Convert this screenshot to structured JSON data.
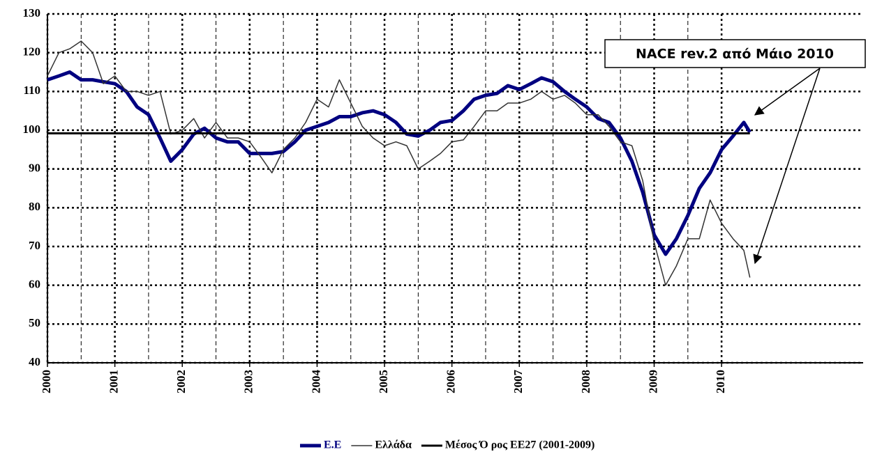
{
  "chart_data": {
    "type": "line",
    "annotation": "NACE rev.2 από Μάιο 2010",
    "x": [
      2000.0,
      2000.17,
      2000.33,
      2000.5,
      2000.67,
      2000.83,
      2001.0,
      2001.17,
      2001.33,
      2001.5,
      2001.67,
      2001.83,
      2002.0,
      2002.17,
      2002.33,
      2002.5,
      2002.67,
      2002.83,
      2003.0,
      2003.17,
      2003.33,
      2003.5,
      2003.67,
      2003.83,
      2004.0,
      2004.17,
      2004.33,
      2004.5,
      2004.67,
      2004.83,
      2005.0,
      2005.17,
      2005.33,
      2005.5,
      2005.67,
      2005.83,
      2006.0,
      2006.17,
      2006.33,
      2006.5,
      2006.67,
      2006.83,
      2007.0,
      2007.17,
      2007.33,
      2007.5,
      2007.67,
      2007.83,
      2008.0,
      2008.17,
      2008.33,
      2008.5,
      2008.67,
      2008.83,
      2009.0,
      2009.17,
      2009.33,
      2009.5,
      2009.67,
      2009.83,
      2010.0,
      2010.17,
      2010.33,
      2010.42
    ],
    "series": [
      {
        "name": "Ε.Ε",
        "color": "#000080",
        "width": 5,
        "values": [
          113,
          114,
          115,
          113,
          113,
          112.5,
          112,
          110,
          106,
          104,
          98,
          92,
          95,
          99,
          100.5,
          98,
          97,
          97,
          94,
          94,
          94,
          94.5,
          97,
          100,
          101,
          102,
          103.5,
          103.5,
          104.5,
          105,
          104,
          102,
          99,
          98.5,
          100,
          102,
          102.5,
          105,
          108,
          109,
          109.5,
          111.5,
          110.5,
          112,
          113.5,
          112.5,
          110,
          108,
          106,
          103,
          102,
          98,
          92,
          84,
          73,
          68,
          72,
          78,
          85,
          89,
          95,
          98.5,
          102,
          99.5
        ]
      },
      {
        "name": "Ελλάδα",
        "color": "#333333",
        "width": 1.5,
        "values": [
          114,
          120,
          121,
          123,
          120,
          112,
          114,
          110,
          110,
          109,
          110,
          99,
          100,
          103,
          98,
          102,
          98,
          98,
          97,
          93,
          89,
          95,
          98,
          102,
          108,
          106,
          113,
          107,
          101,
          98,
          96,
          97,
          96,
          90,
          92,
          94,
          97,
          97.5,
          101,
          105,
          105,
          107,
          107,
          108,
          110,
          108,
          109,
          107,
          104,
          104,
          101,
          97,
          96,
          87,
          71,
          60,
          65,
          72,
          72,
          82,
          76,
          72,
          69,
          62
        ]
      },
      {
        "name": "Μέσος Ό ρος ΕΕ27 (2001-2009)",
        "color": "#000000",
        "width": 3,
        "x": [
          2000.0,
          2010.42
        ],
        "values": [
          99.2,
          99.2
        ]
      }
    ],
    "xlim": [
      2000,
      2012.1
    ],
    "xticks": [
      2000,
      2001,
      2002,
      2003,
      2004,
      2005,
      2006,
      2007,
      2008,
      2009,
      2010
    ],
    "x_minor_ticks": [
      2000.5,
      2001.5,
      2002.5,
      2003.5,
      2004.5,
      2005.5,
      2006.5,
      2007.5,
      2008.5,
      2009.5
    ],
    "ylim": [
      40,
      130
    ],
    "yticks": [
      40,
      50,
      60,
      70,
      80,
      90,
      100,
      110,
      120,
      130
    ],
    "grid": true,
    "legend": "bottom"
  }
}
